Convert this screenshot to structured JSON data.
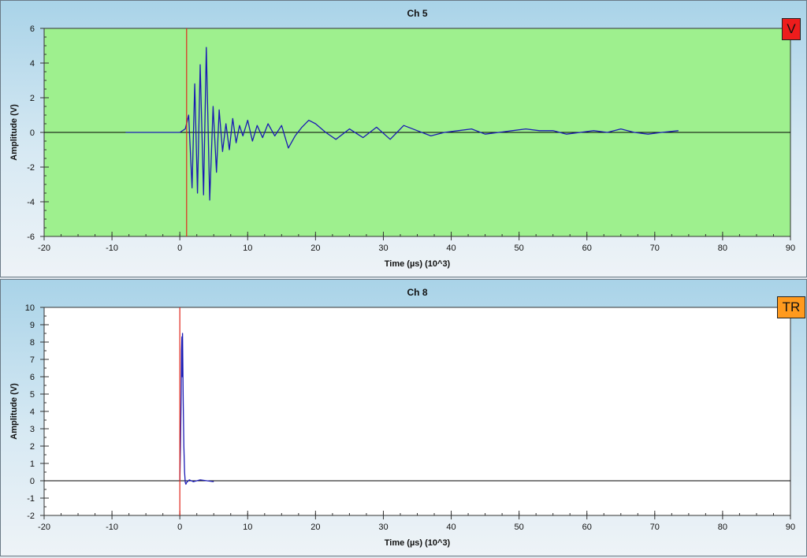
{
  "colors": {
    "trace": "#1a1ab4",
    "cursor": "#e0281e",
    "zero_line": "#000000",
    "ch5_background": "#9ef08e",
    "ch8_background": "#ffffff",
    "badge_v": "#ee1c1c",
    "badge_tr": "#ff9a1e"
  },
  "chart_data": [
    {
      "type": "line",
      "title": "Ch 5",
      "xlabel": "Time (µs) (10^3)",
      "ylabel": "Amplitude (V)",
      "xlim": [
        -20,
        90
      ],
      "ylim": [
        -6,
        6
      ],
      "xticks": [
        -20,
        -10,
        0,
        10,
        20,
        30,
        40,
        50,
        60,
        70,
        80,
        90
      ],
      "yticks": [
        -6,
        -4,
        -2,
        0,
        2,
        4,
        6
      ],
      "yminor_step": 0.5,
      "badge": "V",
      "cursor_x": 1.0,
      "series": [
        {
          "x": [
            -8,
            0,
            0.8,
            1.3,
            1.8,
            2.2,
            2.6,
            3.0,
            3.5,
            3.9,
            4.4,
            4.9,
            5.4,
            5.8,
            6.3,
            6.8,
            7.3,
            7.8,
            8.3,
            8.8,
            9.3,
            10.0,
            10.7,
            11.4,
            12.2,
            13.0,
            14.0,
            15.0,
            16.0,
            17.0,
            18.0,
            19.0,
            20.0,
            21.5,
            23.0,
            25.0,
            27.0,
            29.0,
            31.0,
            33.0,
            35.0,
            37.0,
            39.0,
            41.0,
            43.0,
            45.0,
            47.0,
            49.0,
            51.0,
            53.0,
            55.0,
            57.0,
            59.0,
            61.0,
            63.0,
            65.0,
            67.0,
            69.0,
            71.0,
            73.5
          ],
          "y": [
            0,
            0,
            0.2,
            1.0,
            -3.2,
            2.8,
            -3.5,
            3.9,
            -3.6,
            4.9,
            -3.9,
            1.5,
            -2.3,
            1.3,
            -1.1,
            0.5,
            -1.0,
            0.8,
            -0.6,
            0.4,
            -0.2,
            0.7,
            -0.5,
            0.4,
            -0.3,
            0.5,
            -0.2,
            0.4,
            -0.9,
            -0.2,
            0.3,
            0.7,
            0.5,
            0.0,
            -0.4,
            0.2,
            -0.3,
            0.3,
            -0.4,
            0.4,
            0.1,
            -0.2,
            0.0,
            0.1,
            0.2,
            -0.1,
            0.0,
            0.1,
            0.2,
            0.1,
            0.1,
            -0.1,
            0.0,
            0.1,
            0.0,
            0.2,
            0.0,
            -0.1,
            0.0,
            0.1
          ]
        }
      ]
    },
    {
      "type": "line",
      "title": "Ch 8",
      "xlabel": "Time (µs) (10^3)",
      "ylabel": "Amplitude (V)",
      "xlim": [
        -20,
        90
      ],
      "ylim": [
        -2,
        10
      ],
      "xticks": [
        -20,
        -10,
        0,
        10,
        20,
        30,
        40,
        50,
        60,
        70,
        80,
        90
      ],
      "yticks": [
        -2,
        -1,
        0,
        1,
        2,
        3,
        4,
        5,
        6,
        7,
        8,
        9,
        10
      ],
      "yminor_step": 0.5,
      "badge": "TR",
      "cursor_x": 0.0,
      "series": [
        {
          "x": [
            0.0,
            0.1,
            0.2,
            0.25,
            0.3,
            0.35,
            0.4,
            0.5,
            0.6,
            0.7,
            0.8,
            0.9,
            1.0,
            1.4,
            2.0,
            3.0,
            4.0,
            5.0
          ],
          "y": [
            0.0,
            2.0,
            5.0,
            7.5,
            8.3,
            6.0,
            8.5,
            4.5,
            2.0,
            0.5,
            -0.1,
            -0.2,
            -0.1,
            0.05,
            -0.05,
            0.05,
            0.0,
            -0.05
          ]
        }
      ]
    }
  ]
}
